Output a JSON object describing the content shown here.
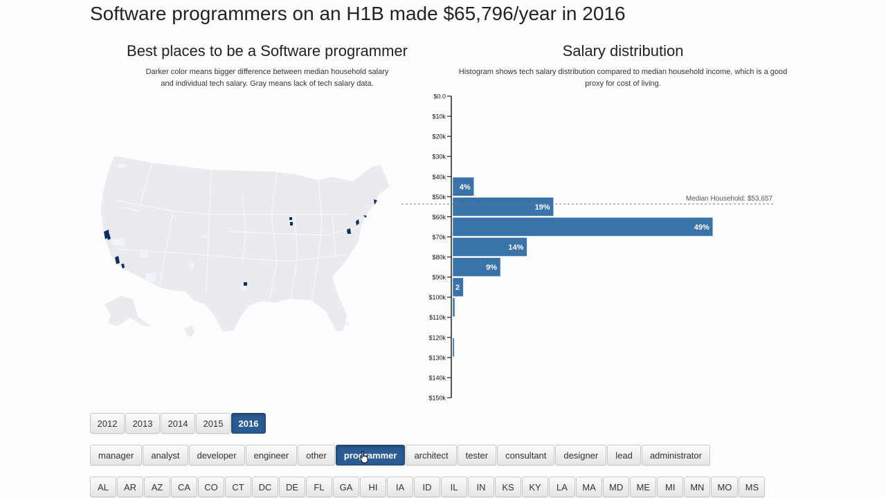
{
  "header": {
    "title": "Software programmers on an H1B made $65,796/year in 2016"
  },
  "map": {
    "title": "Best places to be a Software programmer",
    "description": "Darker color means bigger difference between median household salary and individual tech salary. Gray means lack of tech salary data.",
    "colors": {
      "no_data": "#ebebef",
      "low": "#eef4fb",
      "high": "#0b2f5e",
      "border": "#ffffff"
    }
  },
  "histogram": {
    "title": "Salary distribution",
    "description": "Histogram shows tech salary distribution compared to median household income, which is a good proxy for cost of living.",
    "median_label": "Median Household: $53,657",
    "bar_color": "#3a72aa"
  },
  "chart_data": {
    "type": "bar",
    "orientation": "horizontal",
    "title": "Salary distribution",
    "xlabel": "",
    "ylabel": "",
    "y_ticks": [
      "$0.0",
      "$10k",
      "$20k",
      "$30k",
      "$40k",
      "$50k",
      "$60k",
      "$70k",
      "$80k",
      "$90k",
      "$100k",
      "$110k",
      "$120k",
      "$130k",
      "$140k",
      "$150k"
    ],
    "ylim": [
      0,
      150000
    ],
    "bins": [
      {
        "from": 40000,
        "to": 50000,
        "percent": 4,
        "label": "4%"
      },
      {
        "from": 50000,
        "to": 60000,
        "percent": 19,
        "label": "19%"
      },
      {
        "from": 60000,
        "to": 70000,
        "percent": 49,
        "label": "49%"
      },
      {
        "from": 70000,
        "to": 80000,
        "percent": 14,
        "label": "14%"
      },
      {
        "from": 80000,
        "to": 90000,
        "percent": 9,
        "label": "9%"
      },
      {
        "from": 90000,
        "to": 100000,
        "percent": 2,
        "label": "2"
      },
      {
        "from": 100000,
        "to": 110000,
        "percent": 0.4,
        "label": ""
      },
      {
        "from": 120000,
        "to": 130000,
        "percent": 0.3,
        "label": ""
      }
    ],
    "reference_line": {
      "value": 53657,
      "label": "Median Household: $53,657"
    },
    "grid": false
  },
  "filters": {
    "years": [
      {
        "label": "2012",
        "active": false
      },
      {
        "label": "2013",
        "active": false
      },
      {
        "label": "2014",
        "active": false
      },
      {
        "label": "2015",
        "active": false
      },
      {
        "label": "2016",
        "active": true
      }
    ],
    "roles": [
      {
        "label": "manager",
        "active": false
      },
      {
        "label": "analyst",
        "active": false
      },
      {
        "label": "developer",
        "active": false
      },
      {
        "label": "engineer",
        "active": false
      },
      {
        "label": "other",
        "active": false
      },
      {
        "label": "programmer",
        "active": true
      },
      {
        "label": "architect",
        "active": false
      },
      {
        "label": "tester",
        "active": false
      },
      {
        "label": "consultant",
        "active": false
      },
      {
        "label": "designer",
        "active": false
      },
      {
        "label": "lead",
        "active": false
      },
      {
        "label": "administrator",
        "active": false
      }
    ],
    "states": [
      "AL",
      "AR",
      "AZ",
      "CA",
      "CO",
      "CT",
      "DC",
      "DE",
      "FL",
      "GA",
      "HI",
      "IA",
      "ID",
      "IL",
      "IN",
      "KS",
      "KY",
      "LA",
      "MA",
      "MD",
      "ME",
      "MI",
      "MN",
      "MO",
      "MS"
    ]
  }
}
